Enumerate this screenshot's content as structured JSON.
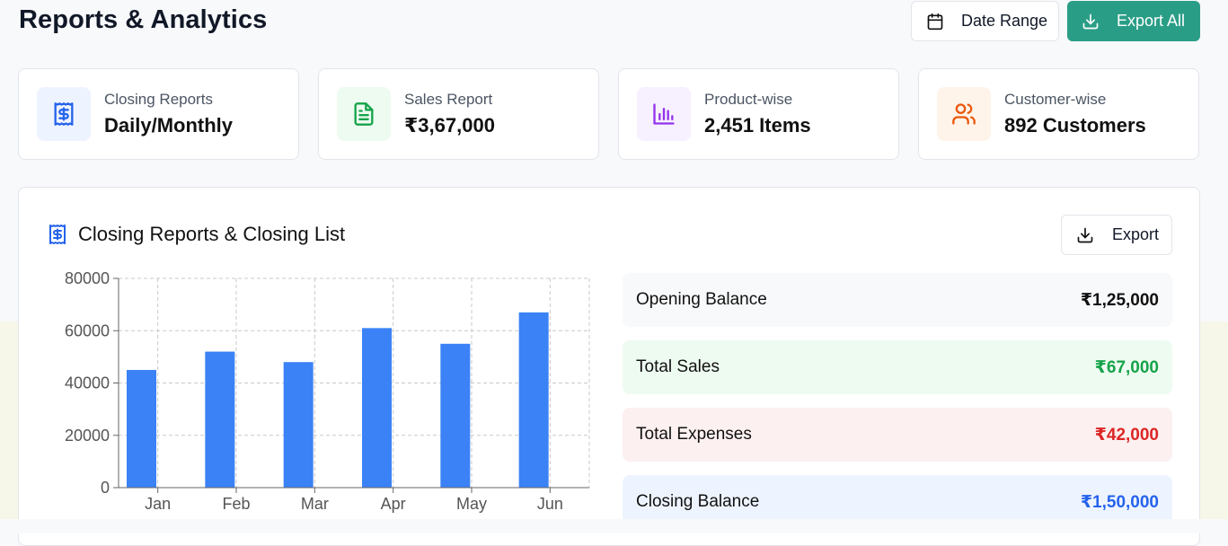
{
  "header": {
    "title": "Reports & Analytics",
    "date_range_label": "Date Range",
    "export_all_label": "Export All"
  },
  "cards": [
    {
      "label": "Closing Reports",
      "value": "Daily/Monthly",
      "icon": "receipt-icon",
      "color": "#2563eb",
      "bg": "#eef4ff"
    },
    {
      "label": "Sales Report",
      "value": "₹3,67,000",
      "icon": "file-text-icon",
      "color": "#16a34a",
      "bg": "#eefbf1"
    },
    {
      "label": "Product-wise",
      "value": "2,451 Items",
      "icon": "bar-chart-icon",
      "color": "#9333ea",
      "bg": "#f7f0ff"
    },
    {
      "label": "Customer-wise",
      "value": "892 Customers",
      "icon": "users-icon",
      "color": "#ea580c",
      "bg": "#fff4ea"
    }
  ],
  "panel": {
    "title": "Closing Reports & Closing List",
    "export_label": "Export"
  },
  "chart_data": {
    "type": "bar",
    "categories": [
      "Jan",
      "Feb",
      "Mar",
      "Apr",
      "May",
      "Jun"
    ],
    "values": [
      45000,
      52000,
      48000,
      61000,
      55000,
      67000
    ],
    "ylim": [
      0,
      80000
    ],
    "yticks": [
      0,
      20000,
      40000,
      60000,
      80000
    ],
    "grid": true,
    "bar_color": "#3b82f6"
  },
  "balances": [
    {
      "label": "Opening Balance",
      "value": "₹1,25,000",
      "bg": "#f8f9fb",
      "color": "#111111"
    },
    {
      "label": "Total Sales",
      "value": "₹67,000",
      "bg": "#eefbf1",
      "color": "#16a34a"
    },
    {
      "label": "Total Expenses",
      "value": "₹42,000",
      "bg": "#fdf0f0",
      "color": "#dc2626"
    },
    {
      "label": "Closing Balance",
      "value": "₹1,50,000",
      "bg": "#eef4ff",
      "color": "#2563eb"
    }
  ]
}
